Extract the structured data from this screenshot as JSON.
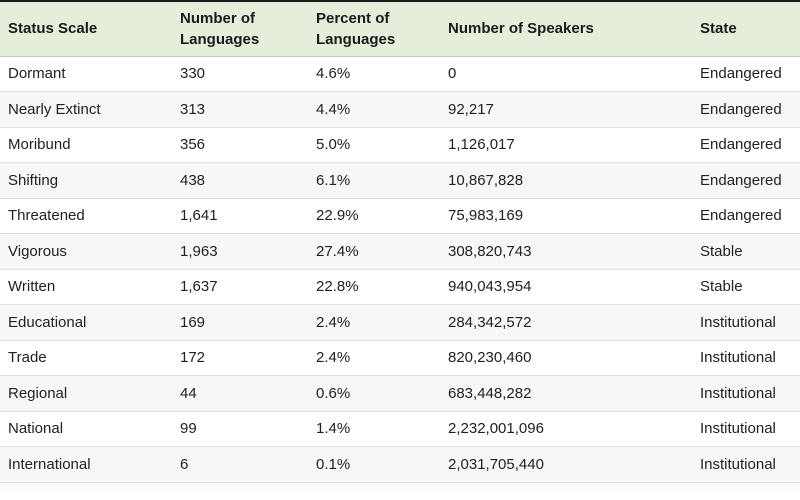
{
  "chart_data": {
    "type": "table",
    "columns": [
      "Status Scale",
      "Number of Languages",
      "Percent of Languages",
      "Number of Speakers",
      "State"
    ],
    "rows": [
      [
        "Dormant",
        "330",
        "4.6%",
        "0",
        "Endangered"
      ],
      [
        "Nearly Extinct",
        "313",
        "4.4%",
        "92,217",
        "Endangered"
      ],
      [
        "Moribund",
        "356",
        "5.0%",
        "1,126,017",
        "Endangered"
      ],
      [
        "Shifting",
        "438",
        "6.1%",
        "10,867,828",
        "Endangered"
      ],
      [
        "Threatened",
        "1,641",
        "22.9%",
        "75,983,169",
        "Endangered"
      ],
      [
        "Vigorous",
        "1,963",
        "27.4%",
        "308,820,743",
        "Stable"
      ],
      [
        "Written",
        "1,637",
        "22.8%",
        "940,043,954",
        "Stable"
      ],
      [
        "Educational",
        "169",
        "2.4%",
        "284,342,572",
        "Institutional"
      ],
      [
        "Trade",
        "172",
        "2.4%",
        "820,230,460",
        "Institutional"
      ],
      [
        "Regional",
        "44",
        "0.6%",
        "683,448,282",
        "Institutional"
      ],
      [
        "National",
        "99",
        "1.4%",
        "2,232,001,096",
        "Institutional"
      ],
      [
        "International",
        "6",
        "0.1%",
        "2,031,705,440",
        "Institutional"
      ]
    ]
  },
  "colors": {
    "top_border": "#1c1c1c",
    "header_bg": "#e4eedb",
    "header_border": "#c9c9c9",
    "row_border": "#e0e0e0",
    "stripe_bg": "#f7f7f7",
    "text": "#212121",
    "bottom_strip_bg": "#fafafa"
  }
}
